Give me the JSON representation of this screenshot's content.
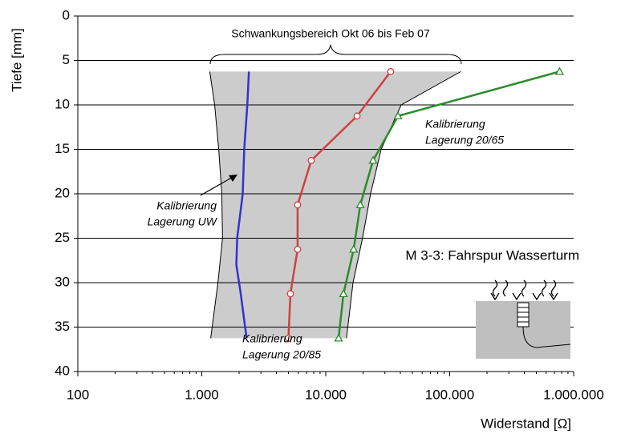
{
  "chart_data": {
    "type": "line",
    "x_label": "Widerstand [Ω]",
    "y_label": "Tiefe [mm]",
    "xlim": [
      100,
      1000000
    ],
    "ylim": [
      0,
      40
    ],
    "x_log": true,
    "y_inverted": true,
    "grid": true,
    "xticks": [
      100,
      {
        "value": 1000,
        "label": "1.000"
      },
      {
        "value": 10000,
        "label": "10.000"
      },
      {
        "value": 100000,
        "label": "100.000"
      },
      {
        "value": 1000000,
        "label": "1.000.000"
      }
    ],
    "yticks": [
      0,
      5,
      10,
      15,
      20,
      25,
      30,
      35,
      40
    ],
    "band": {
      "color": "#cccccc",
      "depths": [
        6.25,
        10,
        15,
        20,
        25,
        30,
        36.25
      ],
      "left": [
        1160,
        1270,
        1370,
        1450,
        1470,
        1350,
        1180
      ],
      "right": [
        123000,
        40600,
        28000,
        23000,
        19800,
        16600,
        14700
      ]
    },
    "series": [
      {
        "color": "#3333cc",
        "marker": "none",
        "x": [
          2400,
          2330,
          2200,
          2140,
          1930,
          1900,
          2050,
          2300
        ],
        "y": [
          6.25,
          10,
          15,
          20,
          25,
          28,
          31,
          36.25
        ]
      },
      {
        "color": "#d04040",
        "marker": "circle",
        "x": [
          33400,
          17900,
          7640,
          5930,
          5930,
          5190,
          5000
        ],
        "y": [
          6.25,
          11.25,
          16.25,
          21.25,
          26.25,
          31.25,
          36.25
        ]
      },
      {
        "color": "#2e8b2e",
        "marker": "triangle",
        "x": [
          770000,
          38300,
          24100,
          19000,
          16800,
          13900,
          12700
        ],
        "y": [
          6.25,
          11.25,
          16.25,
          21.25,
          26.25,
          31.25,
          36.25
        ]
      }
    ],
    "annotations": [
      {
        "lines": [
          "Schwankungsbereich Okt 06 bis Feb 07"
        ],
        "italic": false
      },
      {
        "lines": [
          "Kalibrierung",
          "Lagerung UW"
        ],
        "italic": true
      },
      {
        "lines": [
          "Kalibrierung",
          "Lagerung 20/65"
        ],
        "italic": true
      },
      {
        "lines": [
          "Kalibrierung",
          "Lagerung 20/85"
        ],
        "italic": true
      },
      {
        "lines": [
          "M 3-3: Fahrspur Wasserturm"
        ],
        "italic": false
      }
    ]
  }
}
